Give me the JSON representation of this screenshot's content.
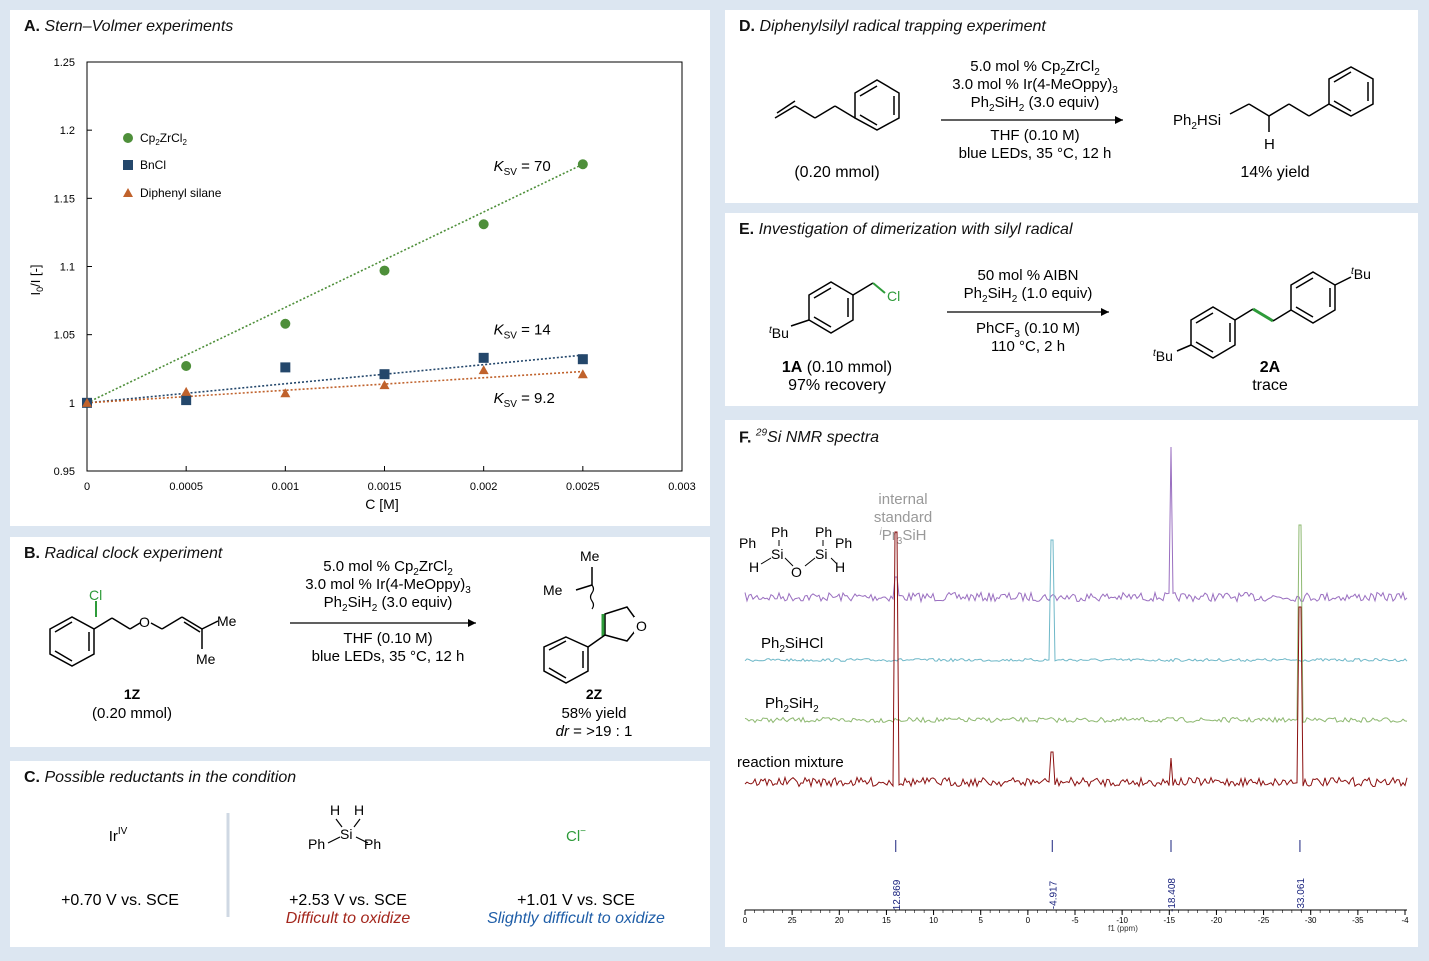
{
  "panelA": {
    "label": "A.",
    "title": "Stern–Volmer experiments",
    "chart_data": {
      "type": "scatter",
      "xlabel": "C [M]",
      "ylabel": "I0/I [-]",
      "xlim": [
        0,
        0.003
      ],
      "ylim": [
        0.95,
        1.25
      ],
      "x_ticks": [
        "0",
        "0.0005",
        "0.001",
        "0.0015",
        "0.002",
        "0.0025",
        "0.003"
      ],
      "y_ticks": [
        "0.95",
        "1",
        "1.05",
        "1.1",
        "1.15",
        "1.2",
        "1.25"
      ],
      "legend_position": "top-left",
      "series": [
        {
          "name": "Cp2ZrCl2",
          "marker": "circle",
          "color": "#4e8f3a",
          "x": [
            0,
            0.0005,
            0.001,
            0.0015,
            0.002,
            0.0025
          ],
          "y": [
            1.0,
            1.027,
            1.058,
            1.097,
            1.131,
            1.175
          ],
          "fit": {
            "slope": 70,
            "intercept": 1.0
          },
          "ksv_label": "KSV = 70"
        },
        {
          "name": "BnCl",
          "marker": "square",
          "color": "#24476b",
          "x": [
            0,
            0.0005,
            0.001,
            0.0015,
            0.002,
            0.0025
          ],
          "y": [
            1.0,
            1.002,
            1.026,
            1.021,
            1.033,
            1.032
          ],
          "fit": {
            "slope": 14,
            "intercept": 1.0
          },
          "ksv_label": "KSV = 14"
        },
        {
          "name": "Diphenyl silane",
          "marker": "triangle",
          "color": "#c0622c",
          "x": [
            0,
            0.0005,
            0.001,
            0.0015,
            0.002,
            0.0025
          ],
          "y": [
            1.0,
            1.008,
            1.007,
            1.013,
            1.024,
            1.021
          ],
          "fit": {
            "slope": 9.2,
            "intercept": 1.0
          },
          "ksv_label": "KSV = 9.2"
        }
      ]
    }
  },
  "panelB": {
    "label": "B.",
    "title": "Radical clock experiment",
    "conditions": [
      "5.0 mol % Cp2ZrCl2",
      "3.0 mol % Ir(4-MeOppy)3",
      "Ph2SiH2 (3.0 equiv)",
      "THF (0.10 M)",
      "blue LEDs, 35 °C, 12 h"
    ],
    "sm_label": "1Z",
    "sm_amount": "(0.20 mmol)",
    "product_label": "2Z",
    "product_yield": "58% yield",
    "product_dr": "dr = >19 : 1"
  },
  "panelC": {
    "label": "C.",
    "title": "Possible reductants in the condition",
    "items": [
      {
        "name": "IrIV",
        "potential": "+0.70 V vs. SCE",
        "note": ""
      },
      {
        "name": "Ph2SiH2",
        "potential": "+2.53 V vs. SCE",
        "note": "Difficult to oxidize",
        "note_color": "#a3261c"
      },
      {
        "name": "Cl−",
        "potential": "+1.01 V vs. SCE",
        "note": "Slightly difficult to oxidize",
        "note_color": "#1f5ea8"
      }
    ]
  },
  "panelD": {
    "label": "D.",
    "title": "Diphenylsilyl radical trapping experiment",
    "conditions": [
      "5.0 mol % Cp2ZrCl2",
      "3.0 mol % Ir(4-MeOppy)3",
      "Ph2SiH2 (3.0 equiv)",
      "THF (0.10 M)",
      "blue LEDs, 35 °C, 12 h"
    ],
    "sm_amount": "(0.20 mmol)",
    "product_yield": "14% yield"
  },
  "panelE": {
    "label": "E.",
    "title": "Investigation of dimerization with silyl radical",
    "conditions": [
      "50 mol % AIBN",
      "Ph2SiH2 (1.0 equiv)",
      "PhCF3 (0.10 M)",
      "110 °C, 2 h"
    ],
    "sm_label": "1A",
    "sm_amount": "(0.10 mmol)",
    "sm_recovery": "97% recovery",
    "product_label": "2A",
    "product_note": "trace"
  },
  "panelF": {
    "label": "F.",
    "title": "29Si NMR spectra",
    "standard_label": [
      "internal",
      "standard",
      "iPr3SiH"
    ],
    "traces": [
      {
        "name": "",
        "color": "#9a6fc0"
      },
      {
        "name": "Ph2SiHCl",
        "color": "#6fb8c8"
      },
      {
        "name": "Ph2SiH2",
        "color": "#8db870"
      },
      {
        "name": "reaction mixture",
        "color": "#8b1010"
      }
    ],
    "peaks": [
      "12.869",
      "-4.917",
      "-18.408",
      "-33.061"
    ],
    "axis_ticks": [
      "0",
      "25",
      "20",
      "15",
      "10",
      "5",
      "0",
      "-5",
      "-10",
      "-15",
      "-20",
      "-25",
      "-30",
      "-35",
      "-4"
    ],
    "axis_unit": "f1 (ppm)"
  }
}
